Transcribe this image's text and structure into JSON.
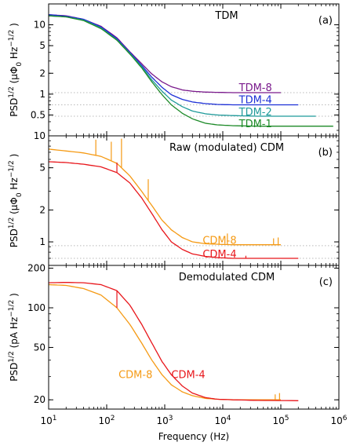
{
  "chart_data": [
    {
      "type": "line",
      "panel": "(a)",
      "title": "TDM",
      "ylabel": "PSD^{1/2} (μΦ0 Hz^{-1/2})",
      "ylabel_parts": {
        "main": "PSD",
        "sup": "1/2",
        "units_pre": " (μΦ",
        "units_sub": "0",
        "units_mid": " Hz",
        "units_sup": "−1/2",
        "units_post": " )"
      },
      "xscale": "log",
      "yscale": "log",
      "xlim": [
        10,
        1000000
      ],
      "ylim": [
        0.25,
        20
      ],
      "yticks": [
        {
          "value": 0.5,
          "label": "0.5"
        },
        {
          "value": 1,
          "label": "1"
        },
        {
          "value": 2,
          "label": "2"
        },
        {
          "value": 5,
          "label": "5"
        },
        {
          "value": 10,
          "label": "10"
        }
      ],
      "reference_lines": [
        1.05,
        0.7,
        0.48
      ],
      "series": [
        {
          "name": "TDM-8",
          "color": "#7a1a8c",
          "label_at": [
            19000,
            1.22
          ],
          "x": [
            10,
            20,
            40,
            80,
            150,
            250,
            400,
            600,
            900,
            1300,
            2000,
            3000,
            5000,
            8000,
            15000,
            30000,
            100000
          ],
          "y": [
            14,
            13.5,
            12,
            9.5,
            6.5,
            4.1,
            2.75,
            1.95,
            1.5,
            1.28,
            1.15,
            1.1,
            1.07,
            1.06,
            1.05,
            1.05,
            1.05
          ]
        },
        {
          "name": "TDM-4",
          "color": "#1c2fd6",
          "label_at": [
            19000,
            0.82
          ],
          "x": [
            10,
            20,
            40,
            80,
            150,
            250,
            400,
            600,
            900,
            1300,
            2000,
            3000,
            5000,
            8000,
            15000,
            30000,
            200000
          ],
          "y": [
            14,
            13.3,
            12,
            9.3,
            6.3,
            4.0,
            2.6,
            1.75,
            1.25,
            0.98,
            0.84,
            0.77,
            0.73,
            0.71,
            0.7,
            0.7,
            0.7
          ]
        },
        {
          "name": "TDM-2",
          "color": "#1f9a9a",
          "label_at": [
            19000,
            0.55
          ],
          "x": [
            10,
            20,
            40,
            80,
            150,
            250,
            400,
            600,
            900,
            1300,
            2000,
            3000,
            5000,
            8000,
            15000,
            40000,
            400000
          ],
          "y": [
            13.5,
            13,
            11.7,
            9,
            6.1,
            3.9,
            2.5,
            1.6,
            1.1,
            0.82,
            0.66,
            0.57,
            0.52,
            0.5,
            0.49,
            0.48,
            0.48
          ]
        },
        {
          "name": "TDM-1",
          "color": "#1d8a28",
          "label_at": [
            19000,
            0.37
          ],
          "x": [
            10,
            20,
            40,
            80,
            150,
            250,
            400,
            600,
            900,
            1300,
            2000,
            3000,
            5000,
            8000,
            15000,
            40000,
            800000
          ],
          "y": [
            13.5,
            13,
            11.5,
            8.8,
            6,
            3.8,
            2.4,
            1.5,
            0.98,
            0.7,
            0.53,
            0.44,
            0.38,
            0.36,
            0.35,
            0.345,
            0.345
          ]
        }
      ]
    },
    {
      "type": "line",
      "panel": "(b)",
      "title": "Raw (modulated) CDM",
      "ylabel": "PSD^{1/2} (μΦ0 Hz^{-1/2})",
      "ylabel_parts": {
        "main": "PSD",
        "sup": "1/2",
        "units_pre": " (μΦ",
        "units_sub": "0",
        "units_mid": " Hz",
        "units_sup": "−1/2",
        "units_post": " )"
      },
      "xscale": "log",
      "yscale": "log",
      "xlim": [
        10,
        1000000
      ],
      "ylim": [
        0.6,
        10
      ],
      "yticks": [
        {
          "value": 1,
          "label": "1"
        },
        {
          "value": 2,
          "label": "2"
        },
        {
          "value": 5,
          "label": "5"
        },
        {
          "value": 10,
          "label": "10"
        }
      ],
      "reference_lines": [
        0.92,
        0.7
      ],
      "series": [
        {
          "name": "CDM-8",
          "color": "#f59a14",
          "label_at": [
            4500,
            1.03
          ],
          "x": [
            10,
            20,
            40,
            80,
            150,
            250,
            400,
            600,
            900,
            1300,
            2000,
            3000,
            5000,
            8000,
            15000,
            40000,
            100000
          ],
          "y": [
            7.5,
            7.2,
            6.9,
            6.4,
            5.5,
            4.2,
            3.0,
            2.2,
            1.6,
            1.3,
            1.1,
            1.0,
            0.96,
            0.95,
            0.94,
            0.94,
            0.94
          ],
          "spikes": [
            [
              65,
              9.2
            ],
            [
              120,
              8.8
            ],
            [
              180,
              9.4
            ],
            [
              520,
              3.9
            ],
            [
              12000,
              1.2
            ],
            [
              75000,
              1.08
            ],
            [
              90000,
              1.1
            ]
          ]
        },
        {
          "name": "CDM-4",
          "color": "#e8161b",
          "label_at": [
            4500,
            0.76
          ],
          "x": [
            10,
            20,
            40,
            80,
            150,
            250,
            400,
            600,
            900,
            1300,
            2000,
            3000,
            5000,
            8000,
            15000,
            40000,
            200000
          ],
          "y": [
            5.7,
            5.6,
            5.4,
            5.1,
            4.5,
            3.6,
            2.6,
            1.85,
            1.3,
            1.0,
            0.85,
            0.77,
            0.73,
            0.71,
            0.7,
            0.7,
            0.7
          ],
          "spikes": [
            [
              150,
              5.6
            ],
            [
              25000,
              0.74
            ]
          ]
        }
      ]
    },
    {
      "type": "line",
      "panel": "(c)",
      "title": "Demodulated CDM",
      "ylabel": "PSD^{1/2} (pA Hz^{-1/2})",
      "ylabel_parts": {
        "main": "PSD",
        "sup": "1/2",
        "units_pre": " (pA",
        "units_sub": "",
        "units_mid": " Hz",
        "units_sup": "−1/2",
        "units_post": " )"
      },
      "xscale": "log",
      "yscale": "log",
      "xlim": [
        10,
        1000000
      ],
      "ylim": [
        17,
        210
      ],
      "yticks": [
        {
          "value": 20,
          "label": "20"
        },
        {
          "value": 50,
          "label": "50"
        },
        {
          "value": 100,
          "label": "100"
        },
        {
          "value": 200,
          "label": "200"
        }
      ],
      "reference_lines": [],
      "series": [
        {
          "name": "CDM-8",
          "color": "#f59a14",
          "label_at": [
            160,
            31
          ],
          "x": [
            10,
            20,
            40,
            80,
            150,
            250,
            400,
            600,
            900,
            1300,
            2000,
            3000,
            5000,
            8000,
            15000,
            40000,
            100000
          ],
          "y": [
            150,
            148,
            140,
            125,
            100,
            75,
            54,
            40,
            31,
            26,
            23,
            21.5,
            20.5,
            20.2,
            20,
            20,
            20
          ],
          "spikes": [
            [
              80000,
              22
            ],
            [
              95000,
              22.5
            ]
          ]
        },
        {
          "name": "CDM-4",
          "color": "#e8161b",
          "label_at": [
            1300,
            31
          ],
          "x": [
            10,
            20,
            40,
            80,
            150,
            250,
            400,
            600,
            900,
            1300,
            2000,
            3000,
            5000,
            8000,
            15000,
            40000,
            200000
          ],
          "y": [
            155,
            156,
            155,
            150,
            135,
            105,
            75,
            54,
            39,
            31,
            25.5,
            22.5,
            20.8,
            20.2,
            20,
            19.8,
            19.7
          ],
          "spikes": [
            [
              150,
              100
            ]
          ]
        }
      ]
    }
  ],
  "x_axis": {
    "label": "Frequency (Hz)",
    "ticks": [
      {
        "value": 10,
        "base": "10",
        "exp": "1"
      },
      {
        "value": 100,
        "base": "10",
        "exp": "2"
      },
      {
        "value": 1000,
        "base": "10",
        "exp": "3"
      },
      {
        "value": 10000,
        "base": "10",
        "exp": "4"
      },
      {
        "value": 100000,
        "base": "10",
        "exp": "5"
      },
      {
        "value": 1000000,
        "base": "10",
        "exp": "6"
      }
    ]
  }
}
